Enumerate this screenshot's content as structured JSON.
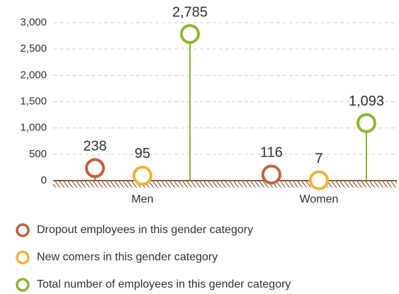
{
  "chart_data": {
    "type": "lollipop",
    "categories": [
      "Men",
      "Women"
    ],
    "series": [
      {
        "name": "Dropout employees in this gender category",
        "color": "#c4623c",
        "values": [
          238,
          116
        ]
      },
      {
        "name": "New comers in this gender category",
        "color": "#f6b131",
        "values": [
          95,
          7
        ]
      },
      {
        "name": "Total number of employees in this gender category",
        "color": "#8ab92d",
        "values": [
          2785,
          1093
        ],
        "value_labels": [
          "2,785",
          "1,093"
        ]
      }
    ],
    "ylim": [
      0,
      3000
    ],
    "yticks": [
      0,
      500,
      {
        "value": 1000,
        "label": "1,000"
      },
      {
        "value": 1500,
        "label": "1,500"
      },
      {
        "value": 2000,
        "label": "2,000"
      },
      {
        "value": 2500,
        "label": "2,500"
      },
      {
        "value": 3000,
        "label": "3,000"
      }
    ],
    "grid": true
  }
}
